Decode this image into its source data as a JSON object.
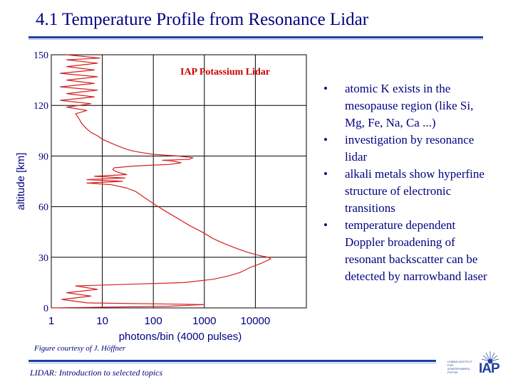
{
  "slide": {
    "title": "4.1 Temperature Profile from Resonance Lidar",
    "credit": "Figure courtesy of J. Höffner",
    "footer": "LIDAR: Introduction to selected topics"
  },
  "bullets": [
    "atomic K exists in the mesopause region (like Si, Mg, Fe, Na, Ca ...)",
    "investigation by resonance lidar",
    "alkali metals show hyperfine structure of electronic transitions",
    "temperature dependent Doppler broadening of resonant backscatter can be detected by narrowband  laser"
  ],
  "logo": {
    "text": "IAP",
    "small_lines": [
      "LEIBNIZ-INSTITUT",
      "FÜR",
      "ATMOSPHÄREN-",
      "PHYSIK"
    ],
    "color": "#1f3f9f"
  },
  "colors": {
    "accent": "#000080",
    "rule": "#1f3f9f",
    "trace": "#d42020",
    "annotation": "#cc0000"
  },
  "chart_data": {
    "type": "line",
    "title": "",
    "annotation": "IAP Potassium Lidar",
    "xlabel": "photons/bin (4000 pulses)",
    "ylabel": "altitude [km]",
    "xscale": "log",
    "xlim": [
      1,
      100000
    ],
    "ylim": [
      0,
      150
    ],
    "x_ticks": [
      1,
      10,
      100,
      1000,
      10000
    ],
    "x_tick_labels": [
      "1",
      "10",
      "100",
      "1000",
      "10000"
    ],
    "y_ticks": [
      0,
      30,
      60,
      90,
      120,
      150
    ],
    "y_tick_labels": [
      "0",
      "30",
      "60",
      "90",
      "120",
      "150"
    ],
    "grid": true,
    "series": [
      {
        "points": [
          [
            1,
            0
          ],
          [
            200,
            1
          ],
          [
            1000,
            2
          ],
          [
            5,
            3
          ],
          [
            1.6,
            5
          ],
          [
            6,
            7
          ],
          [
            2,
            9
          ],
          [
            8,
            11
          ],
          [
            3,
            13
          ],
          [
            30,
            14
          ],
          [
            400,
            15
          ],
          [
            1500,
            17
          ],
          [
            3000,
            19
          ],
          [
            5000,
            21
          ],
          [
            8000,
            24
          ],
          [
            12000,
            26
          ],
          [
            17000,
            28
          ],
          [
            20000,
            29
          ],
          [
            18000,
            30
          ],
          [
            12000,
            31
          ],
          [
            7000,
            33
          ],
          [
            4500,
            35
          ],
          [
            2500,
            38
          ],
          [
            1500,
            41
          ],
          [
            900,
            45
          ],
          [
            500,
            49
          ],
          [
            300,
            53
          ],
          [
            180,
            57
          ],
          [
            110,
            61
          ],
          [
            70,
            65
          ],
          [
            45,
            69
          ],
          [
            30,
            71
          ],
          [
            15,
            73
          ],
          [
            5,
            74
          ],
          [
            25,
            75
          ],
          [
            5,
            76
          ],
          [
            28,
            77
          ],
          [
            7,
            78
          ],
          [
            30,
            79
          ],
          [
            22,
            80
          ],
          [
            18,
            81
          ],
          [
            16,
            82
          ],
          [
            17,
            83
          ],
          [
            40,
            84
          ],
          [
            80,
            84.5
          ],
          [
            200,
            85
          ],
          [
            350,
            86
          ],
          [
            250,
            87
          ],
          [
            150,
            87.5
          ],
          [
            500,
            88
          ],
          [
            600,
            89
          ],
          [
            300,
            90
          ],
          [
            100,
            91
          ],
          [
            60,
            92
          ],
          [
            40,
            93
          ],
          [
            30,
            94
          ],
          [
            20,
            96
          ],
          [
            14,
            98
          ],
          [
            10,
            100
          ],
          [
            8,
            102
          ],
          [
            6,
            104
          ],
          [
            5,
            106
          ],
          [
            4,
            109
          ],
          [
            3.5,
            112
          ],
          [
            3,
            115
          ],
          [
            5,
            117
          ],
          [
            2,
            119
          ],
          [
            6,
            121
          ],
          [
            1.5,
            123
          ],
          [
            7,
            125
          ],
          [
            2,
            127
          ],
          [
            8,
            129
          ],
          [
            1.5,
            131
          ],
          [
            7,
            133
          ],
          [
            2,
            135
          ],
          [
            8,
            137
          ],
          [
            1.5,
            139
          ],
          [
            7,
            141
          ],
          [
            2,
            143
          ],
          [
            8,
            145
          ],
          [
            2,
            147
          ],
          [
            9,
            148
          ],
          [
            2,
            150
          ]
        ]
      }
    ]
  }
}
